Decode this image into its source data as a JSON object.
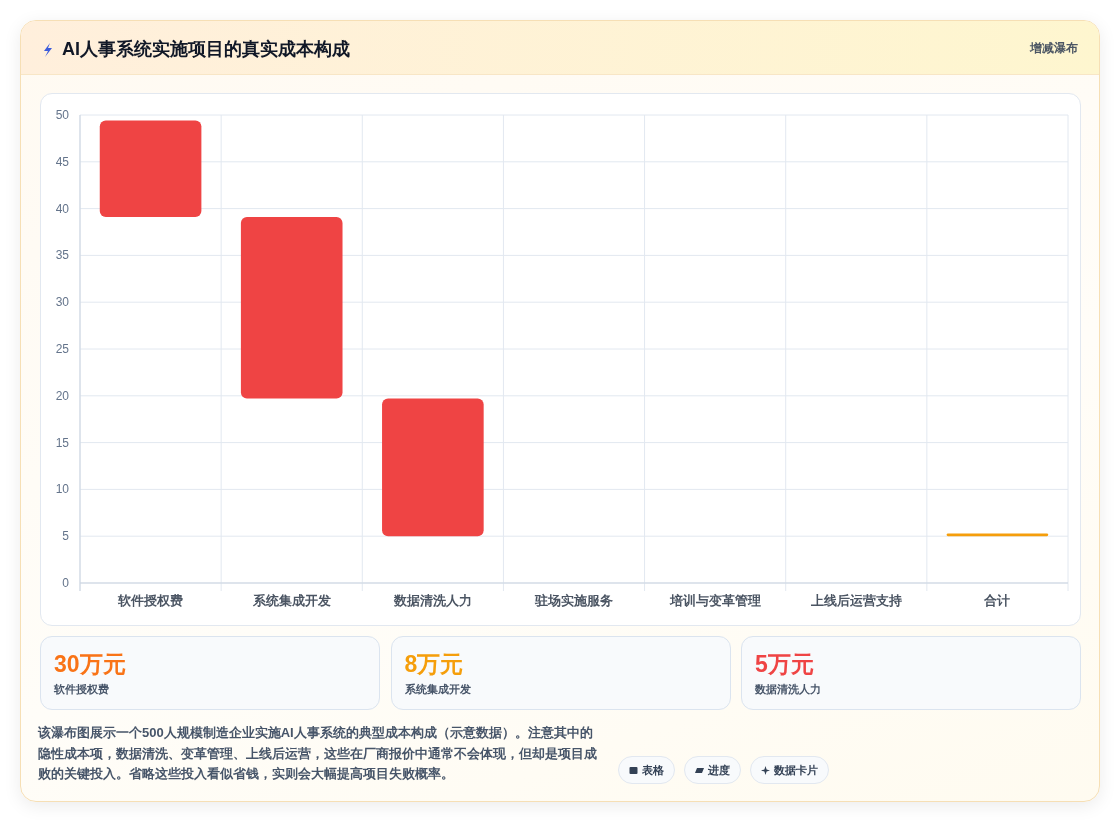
{
  "chart_data": [
    {
      "type": "bar",
      "title": "AI人事系统实施项目的真实成本构成",
      "categories": [
        "软件授权费",
        "系统集成开发",
        "数据清洗人力",
        "驻场实施服务",
        "培训与变革管理",
        "上线后运营支持",
        "合计"
      ],
      "values": [
        10.3,
        19.4,
        14.7,
        null,
        null,
        null,
        0.3
      ],
      "base": [
        39.1,
        19.7,
        5,
        null,
        null,
        null,
        5
      ],
      "colors": [
        "#ef4444",
        "#ef4444",
        "#ef4444",
        null,
        null,
        null,
        "#f59e0b"
      ],
      "ylim": [
        0,
        50
      ],
      "yticks": [
        0,
        5,
        10,
        15,
        20,
        25,
        30,
        35,
        40,
        45,
        50
      ],
      "grid": true,
      "annotations": [
        "增减瀑布",
        "该瀑布图展示一个500人规模制造企业实施AI人事系统的典型成本构成（示意数据）。注意其中的隐性成本项，数据清洗、变革管理、上线后运营，这些在厂商报价中通常不会体现，但却是项目成败的关键投入。省略这些投入看似省钱，实则会大幅提高项目失败概率。",
        "表格",
        "进度",
        "数据卡片"
      ]
    },
    {
      "type": "other",
      "annotations": [
        "30万元",
        "软件授权费",
        "8万元",
        "系统集成开发",
        "5万元",
        "数据清洗人力"
      ]
    }
  ]
}
